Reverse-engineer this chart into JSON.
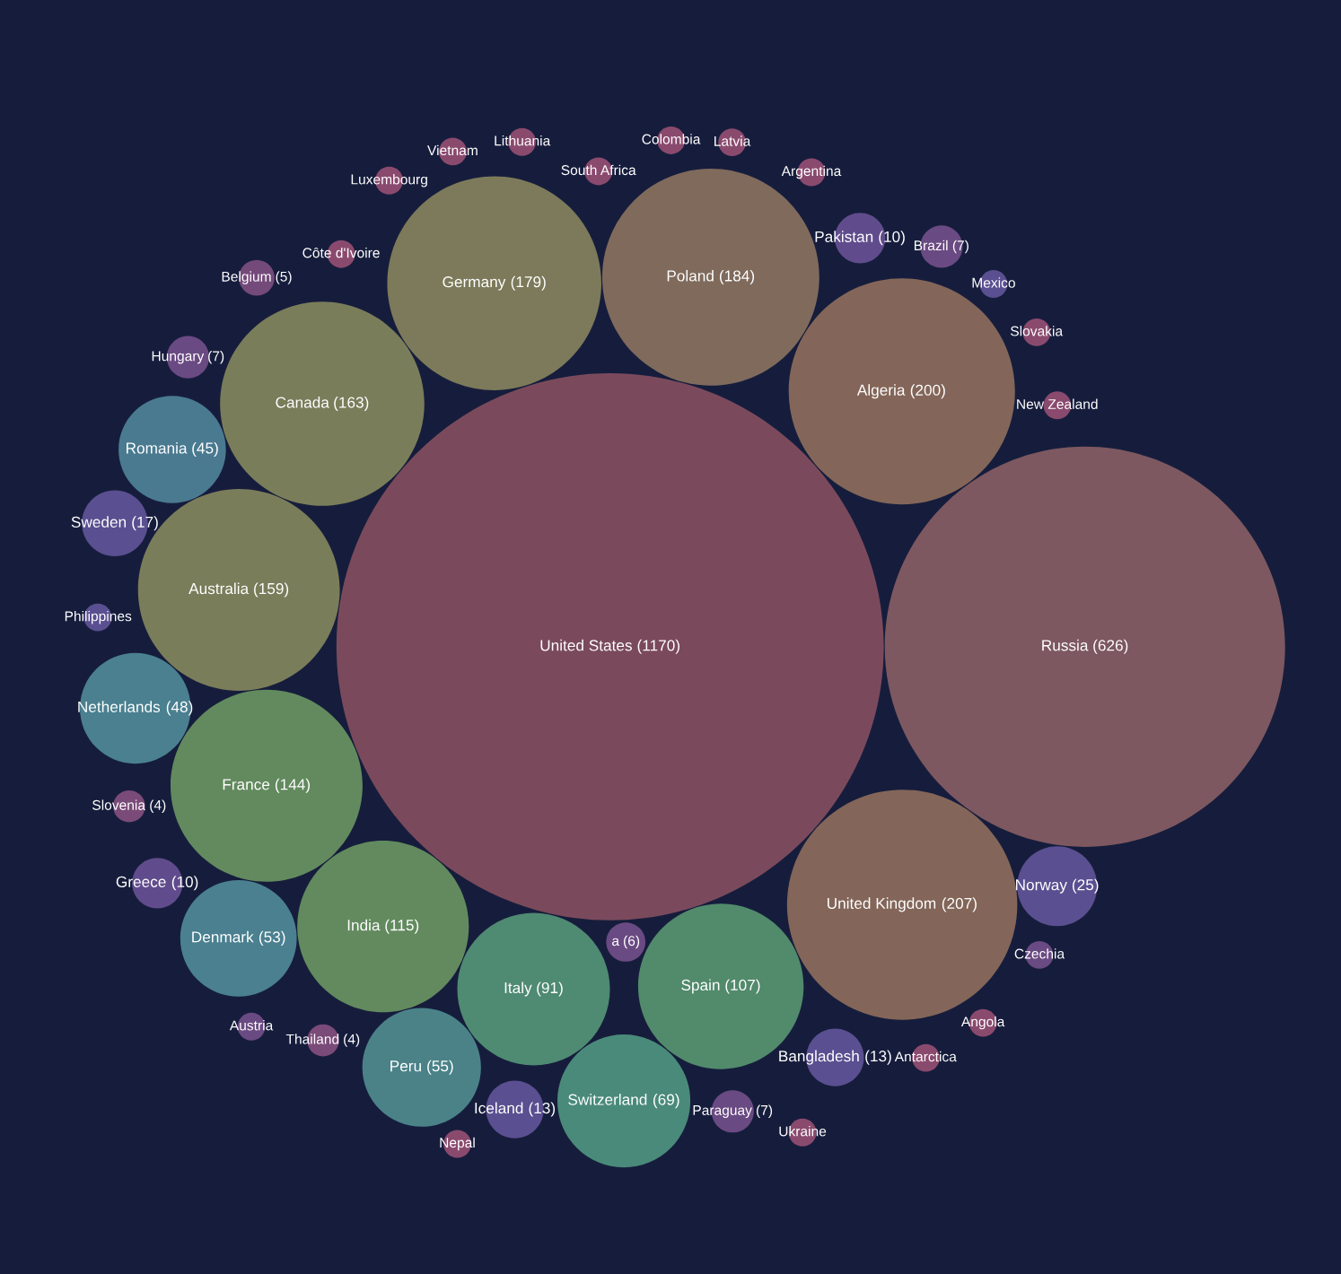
{
  "chart_data": {
    "type": "other",
    "value_labels": [
      "(1170)",
      "(626)",
      "(207)",
      "(200)",
      "(184)",
      "(179)",
      "(163)",
      "(159)",
      "(144)",
      "(115)",
      "(107)",
      "(91)",
      "(69)",
      "(55)",
      "(53)",
      "(48)",
      "(45)",
      "(25)",
      "(17)",
      "(13)",
      "(13)",
      "(10)",
      "(10)",
      "(7)",
      "(7)",
      "(7)",
      "(6)",
      "(5)",
      "(4)",
      "(4)",
      null,
      null,
      null,
      null,
      null,
      null,
      null,
      null,
      null,
      null,
      null,
      null,
      null,
      null,
      null,
      null,
      null,
      null
    ],
    "categories": [
      "United States",
      "Russia",
      "United Kingdom",
      "Algeria",
      "Poland",
      "Germany",
      "Canada",
      "Australia",
      "France",
      "India",
      "Spain",
      "Italy",
      "Switzerland",
      "Peru",
      "Denmark",
      "Netherlands",
      "Romania",
      "Norway",
      "Sweden",
      "Bangladesh",
      "Iceland",
      "Greece",
      "Pakistan",
      "Hungary",
      "Paraguay",
      "Brazil",
      "a",
      "Belgium",
      "Thailand",
      "Slovenia",
      "Mexico",
      "Philippines",
      "Austria",
      "Czechia",
      "South Africa",
      "Nepal",
      "Antarctica",
      "Luxembourg",
      "Lithuania",
      "Angola",
      "Vietnam",
      "Colombia",
      "Ukraine",
      "Argentina",
      "Slovakia",
      "New Zealand",
      "Côte d'Ivoire",
      "Latvia"
    ],
    "values": [
      1170,
      626,
      207,
      200,
      184,
      179,
      163,
      159,
      144,
      115,
      107,
      91,
      69,
      55,
      53,
      48,
      45,
      25,
      17,
      13,
      13,
      10,
      10,
      7,
      7,
      7,
      6,
      5,
      4,
      4,
      null,
      null,
      null,
      null,
      null,
      null,
      null,
      null,
      null,
      null,
      null,
      null,
      null,
      null,
      null,
      null,
      null,
      null
    ],
    "colors": [
      "#7a4a5c",
      "#7d5860",
      "#836659",
      "#836659",
      "#7f6a5c",
      "#7c7a5a",
      "#7a7d5a",
      "#7a7d5a",
      "#628a5e",
      "#628a5e",
      "#528a6c",
      "#4f8a72",
      "#4a8a7a",
      "#4a8288",
      "#4a8090",
      "#4a8090",
      "#4a7a90",
      "#5a4f90",
      "#5a4f90",
      "#5a4f90",
      "#5a4f90",
      "#604c8c",
      "#604c8c",
      "#6a4a82",
      "#6a4a82",
      "#6a4a82",
      "#6a4a82",
      "#744a7a",
      "#7a4a78",
      "#7a4a78",
      "#5a4f90",
      "#5a4f90",
      "#6a4a82",
      "#6a4a82",
      "#8a4a6e",
      "#8a4a6e",
      "#8a4a6e",
      "#8a4a6e",
      "#8a4a6e",
      "#8a4a6e",
      "#8a4a6e",
      "#8a4a6e",
      "#8a4a6e",
      "#8a4a6e",
      "#8a4a6e",
      "#8a4a6e",
      "#8a4a6e",
      "#8a4a6e"
    ]
  }
}
